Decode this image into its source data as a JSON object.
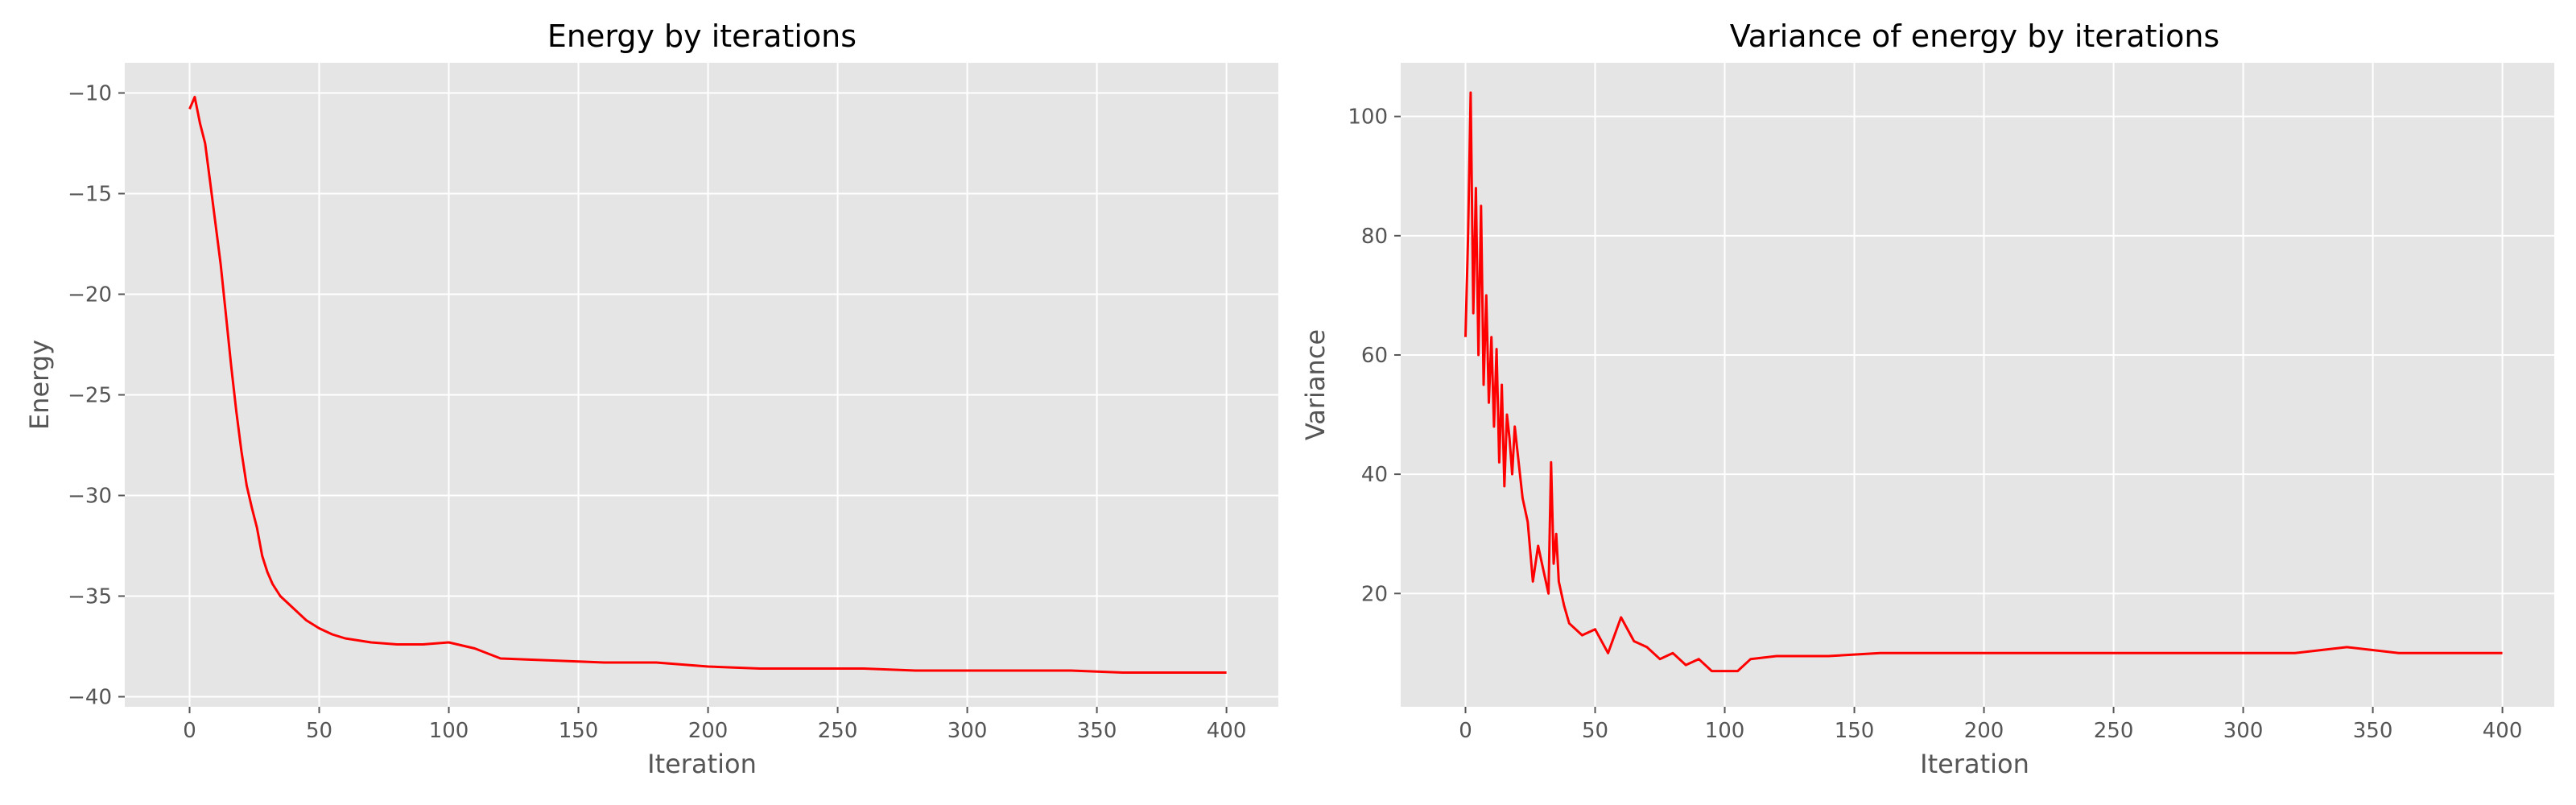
{
  "chart_data": [
    {
      "type": "line",
      "title": "Energy by iterations",
      "xlabel": "Iteration",
      "ylabel": "Energy",
      "xlim": [
        -25,
        420
      ],
      "ylim": [
        -40.5,
        -8.5
      ],
      "xticks": [
        0,
        50,
        100,
        150,
        200,
        250,
        300,
        350,
        400
      ],
      "yticks": [
        -40,
        -35,
        -30,
        -25,
        -20,
        -15,
        -10
      ],
      "grid": true,
      "color": "#ff0000",
      "series": [
        {
          "x": [
            0,
            2,
            4,
            6,
            8,
            10,
            12,
            14,
            16,
            18,
            20,
            22,
            24,
            26,
            28,
            30,
            32,
            35,
            40,
            45,
            50,
            55,
            60,
            70,
            80,
            90,
            100,
            110,
            120,
            140,
            160,
            180,
            200,
            220,
            240,
            260,
            280,
            300,
            320,
            340,
            360,
            380,
            400
          ],
          "values": [
            -10.8,
            -10.2,
            -11.5,
            -12.5,
            -14.5,
            -16.5,
            -18.5,
            -21.0,
            -23.5,
            -25.8,
            -27.8,
            -29.5,
            -30.6,
            -31.6,
            -33.0,
            -33.8,
            -34.4,
            -35.0,
            -35.6,
            -36.2,
            -36.6,
            -36.9,
            -37.1,
            -37.3,
            -37.4,
            -37.4,
            -37.3,
            -37.6,
            -38.1,
            -38.2,
            -38.3,
            -38.3,
            -38.5,
            -38.6,
            -38.6,
            -38.6,
            -38.7,
            -38.7,
            -38.7,
            -38.7,
            -38.8,
            -38.8,
            -38.8
          ]
        }
      ]
    },
    {
      "type": "line",
      "title": "Variance of energy by iterations",
      "xlabel": "Iteration",
      "ylabel": "Variance",
      "xlim": [
        -25,
        420
      ],
      "ylim": [
        1,
        109
      ],
      "xticks": [
        0,
        50,
        100,
        150,
        200,
        250,
        300,
        350,
        400
      ],
      "yticks": [
        20,
        40,
        60,
        80,
        100
      ],
      "grid": true,
      "color": "#ff0000",
      "series": [
        {
          "x": [
            0,
            1,
            2,
            3,
            4,
            5,
            6,
            7,
            8,
            9,
            10,
            11,
            12,
            13,
            14,
            15,
            16,
            17,
            18,
            19,
            20,
            22,
            24,
            26,
            28,
            30,
            32,
            33,
            34,
            35,
            36,
            38,
            40,
            45,
            50,
            55,
            60,
            65,
            70,
            75,
            80,
            85,
            90,
            95,
            100,
            105,
            110,
            120,
            140,
            160,
            180,
            200,
            220,
            240,
            260,
            280,
            300,
            320,
            340,
            360,
            380,
            400
          ],
          "values": [
            63,
            80,
            104,
            67,
            88,
            60,
            85,
            55,
            70,
            52,
            63,
            48,
            61,
            42,
            55,
            38,
            50,
            46,
            40,
            48,
            44,
            36,
            32,
            22,
            28,
            24,
            20,
            42,
            25,
            30,
            22,
            18,
            15,
            13,
            14,
            10,
            16,
            12,
            11,
            9,
            10,
            8,
            9,
            7,
            7,
            7,
            9,
            9.5,
            9.5,
            10,
            10,
            10,
            10,
            10,
            10,
            10,
            10,
            10,
            11,
            10,
            10,
            10
          ]
        }
      ]
    }
  ]
}
